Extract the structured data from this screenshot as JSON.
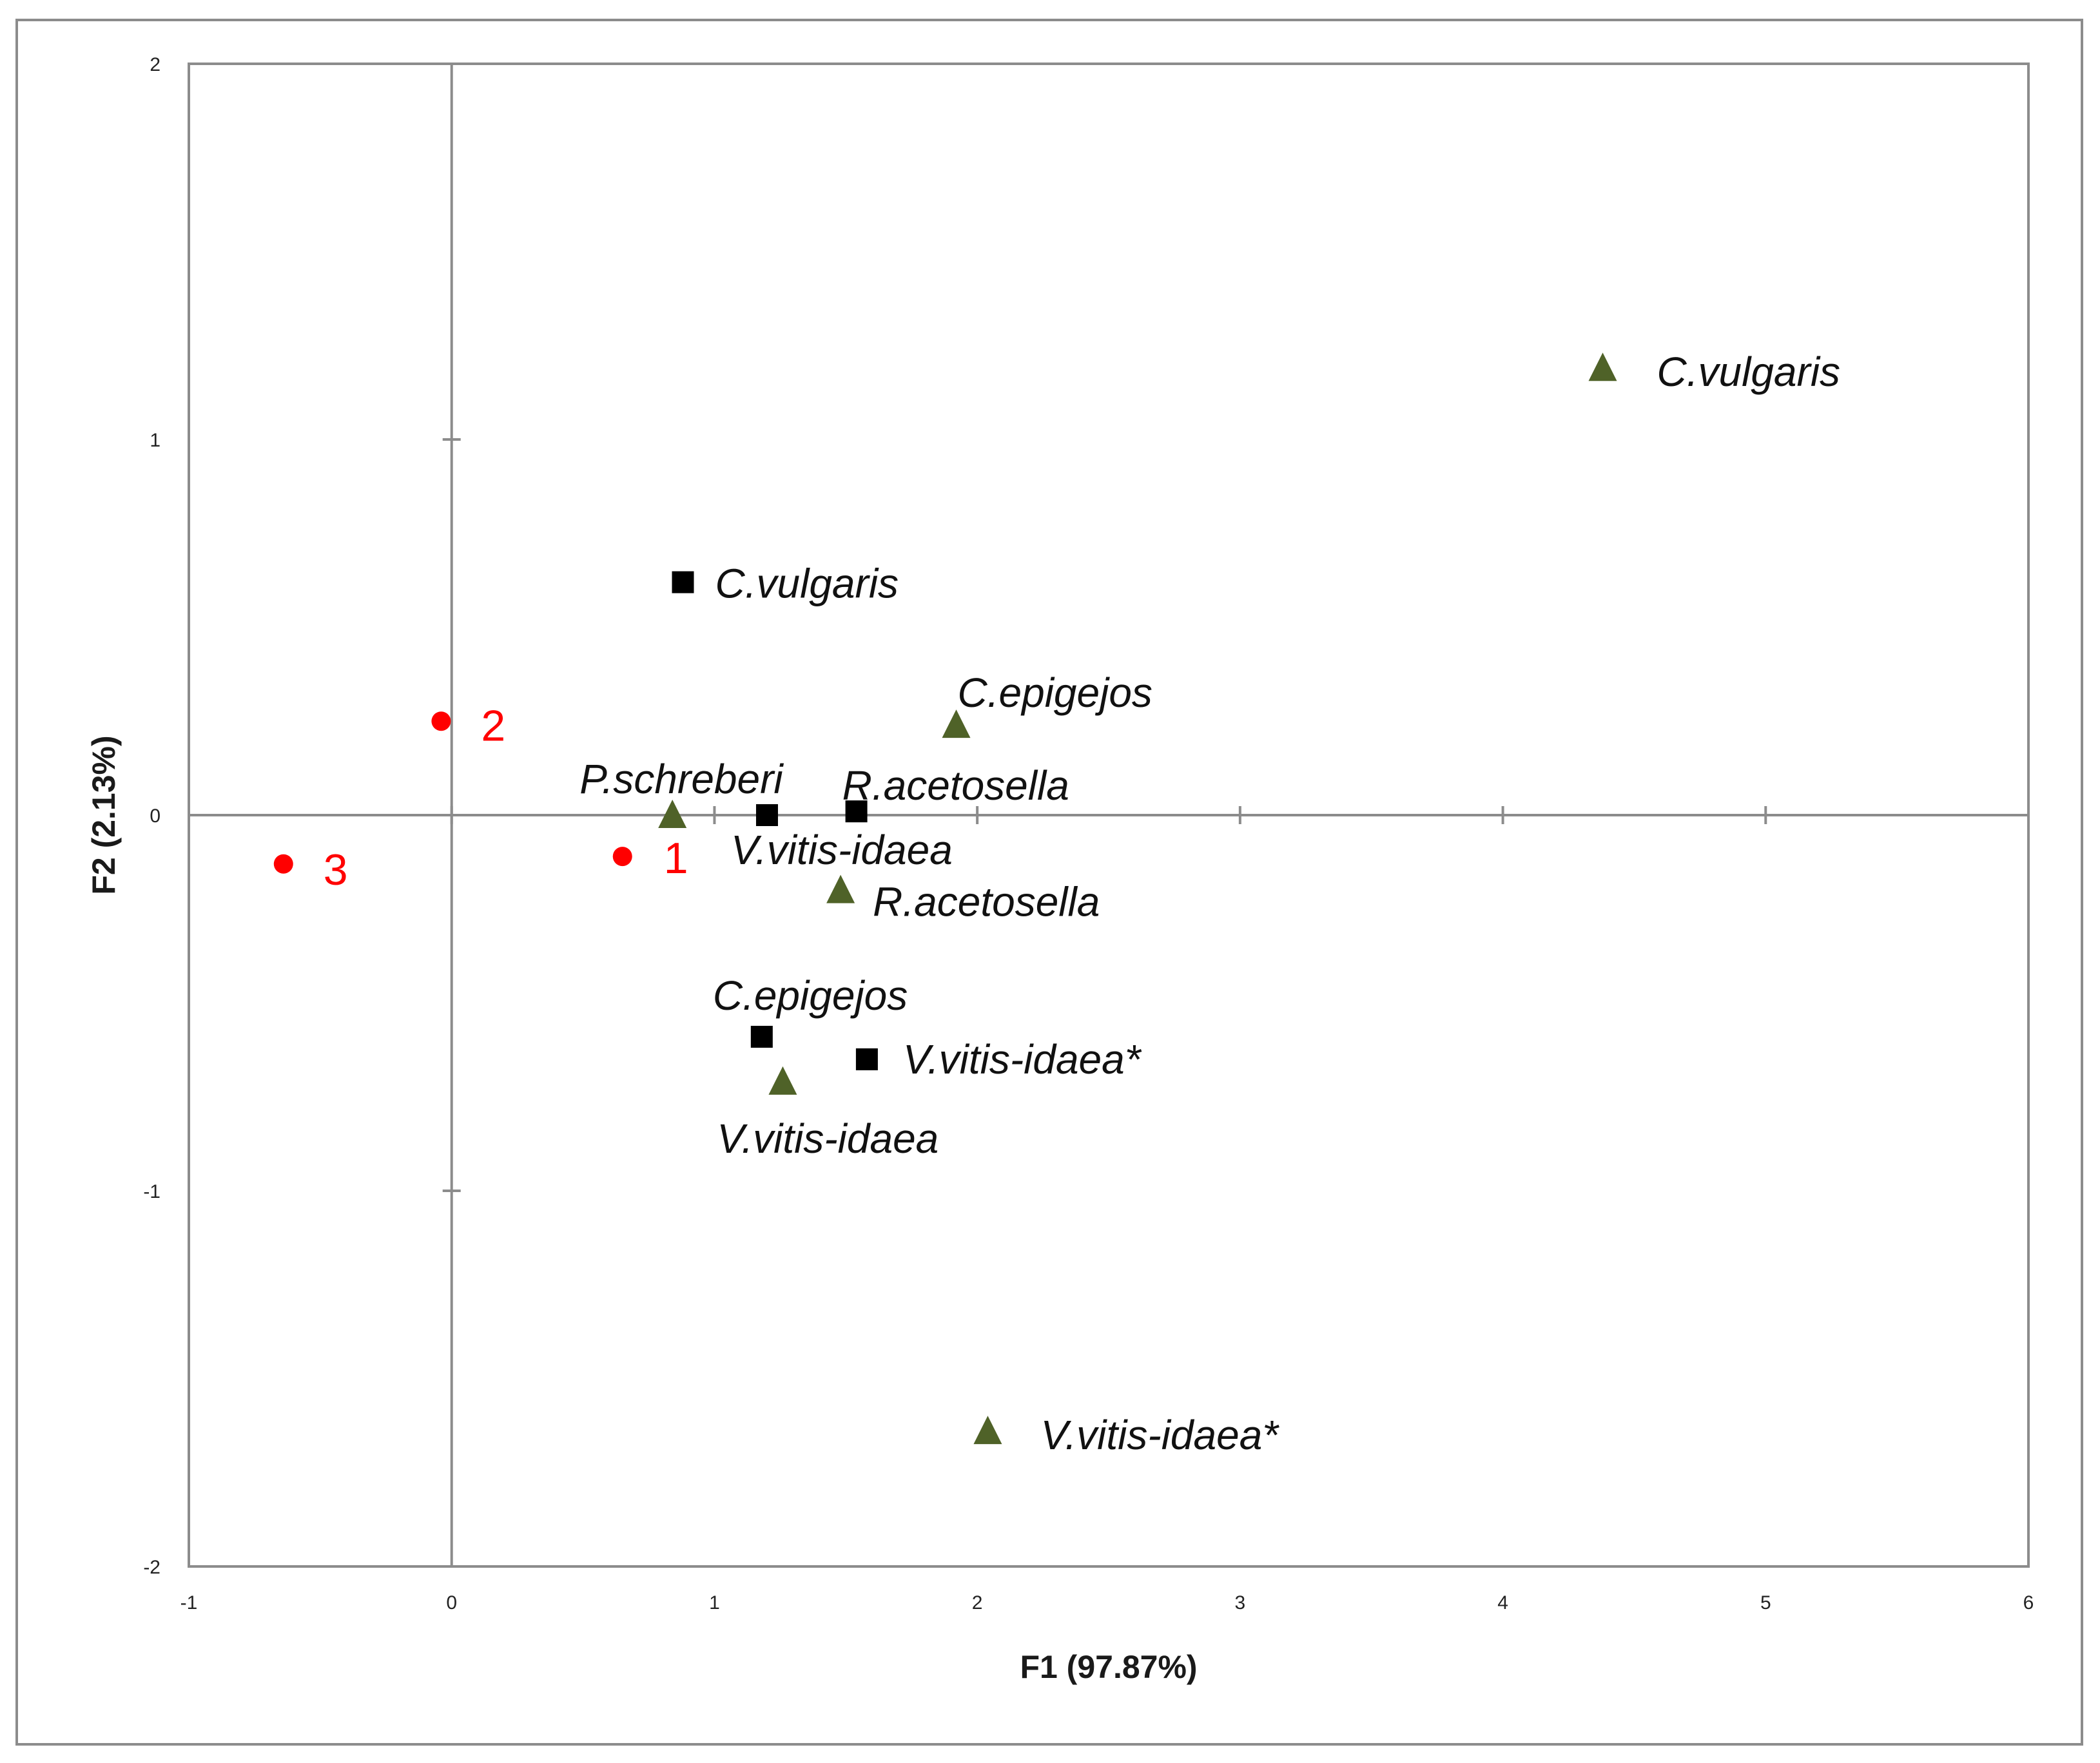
{
  "chart_data": {
    "type": "scatter",
    "title": "",
    "xlabel": "F1 (97.87%)",
    "ylabel": "F2 (2.13%)",
    "xlim": [
      -1,
      6
    ],
    "ylim": [
      -2,
      2
    ],
    "xticks": [
      "-1",
      "0",
      "1",
      "2",
      "3",
      "4",
      "5",
      "6"
    ],
    "yticks": [
      "2",
      "1",
      "0",
      "-1",
      "-2"
    ],
    "grid": false,
    "legend": "none",
    "colors": {
      "site": "#ff0000",
      "square": "#000000",
      "triangle": "#4f6228"
    },
    "series": [
      {
        "marker": "circle",
        "points": [
          {
            "x": 0.65,
            "y": -0.11,
            "label": "1"
          },
          {
            "x": -0.04,
            "y": 0.25,
            "label": "2"
          },
          {
            "x": -0.64,
            "y": -0.13,
            "label": "3"
          }
        ]
      },
      {
        "marker": "square",
        "points": [
          {
            "x": 0.88,
            "y": 0.62,
            "label": "C.vulgaris"
          },
          {
            "x": 1.2,
            "y": 0.0,
            "label": "V.vitis-idaea"
          },
          {
            "x": 1.54,
            "y": 0.01,
            "label": "R.acetosella"
          },
          {
            "x": 1.18,
            "y": -0.59,
            "label": "C.epigejos"
          },
          {
            "x": 1.58,
            "y": -0.65,
            "label": "V.vitis-idaea*"
          }
        ]
      },
      {
        "marker": "triangle",
        "points": [
          {
            "x": 4.38,
            "y": 1.19,
            "label": "C.vulgaris"
          },
          {
            "x": 1.92,
            "y": 0.24,
            "label": "C.epigejos"
          },
          {
            "x": 0.84,
            "y": 0.0,
            "label": "P.schreberi"
          },
          {
            "x": 1.48,
            "y": -0.2,
            "label": "R.acetosella"
          },
          {
            "x": 1.26,
            "y": -0.71,
            "label": "V.vitis-idaea"
          },
          {
            "x": 2.04,
            "y": -1.64,
            "label": "V.vitis-idaea*"
          }
        ]
      }
    ]
  }
}
